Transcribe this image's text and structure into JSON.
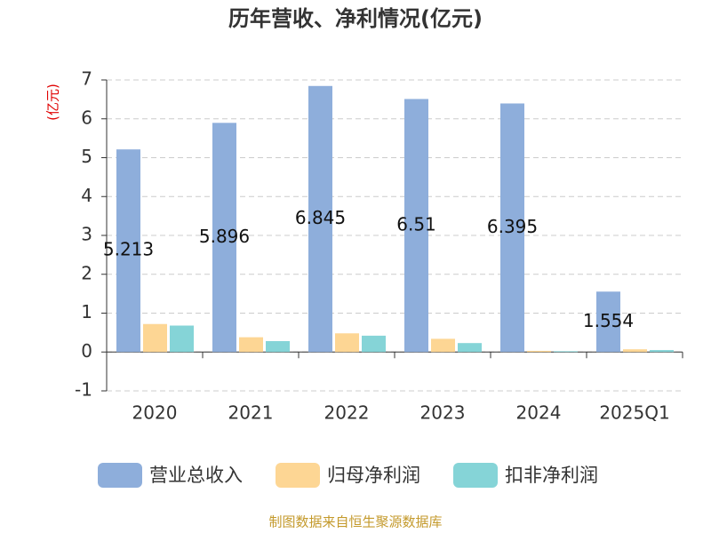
{
  "chart_data": {
    "type": "bar",
    "title": "历年营收、净利情况(亿元)",
    "y_label": "(亿元)",
    "categories": [
      "2020",
      "2021",
      "2022",
      "2023",
      "2024",
      "2025Q1"
    ],
    "series": [
      {
        "name": "营业总收入",
        "color": "#8eaedb",
        "values": [
          5.213,
          5.896,
          6.845,
          6.51,
          6.395,
          1.554
        ],
        "data_labels": true
      },
      {
        "name": "归母净利润",
        "color": "#fdd694",
        "values": [
          0.72,
          0.38,
          0.48,
          0.34,
          0.03,
          0.07
        ],
        "data_labels": false
      },
      {
        "name": "扣非净利润",
        "color": "#85d4d7",
        "values": [
          0.68,
          0.28,
          0.42,
          0.23,
          0.02,
          0.05
        ],
        "data_labels": false
      }
    ],
    "ylim": [
      -1,
      7
    ],
    "yticks": [
      -1,
      0,
      1,
      2,
      3,
      4,
      5,
      6,
      7
    ],
    "grid": true,
    "legend": "bottom",
    "source": "制图数据来自恒生聚源数据库"
  }
}
